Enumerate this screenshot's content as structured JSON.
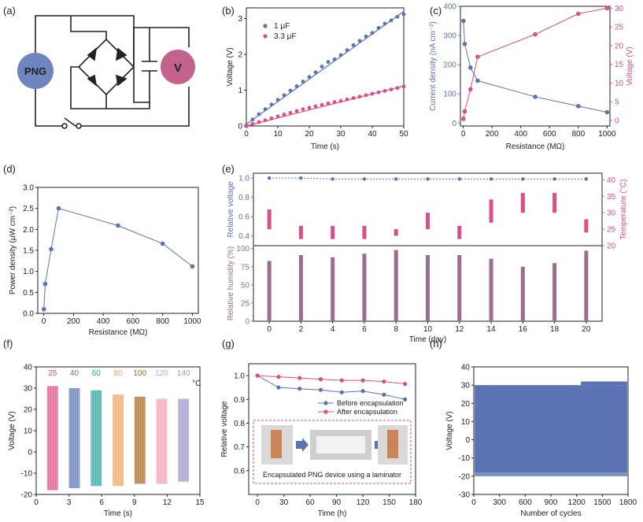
{
  "colors": {
    "blue": "#5b73b5",
    "pink": "#d94f86",
    "purple": "#9a6e8e",
    "fill": "#5b73b5",
    "circuitPNG": "#6f85bf",
    "circuitV": "#c3628d",
    "inset_border": "#d94f86"
  },
  "panel_labels": {
    "a": "(a)",
    "b": "(b)",
    "c": "(c)",
    "d": "(d)",
    "e": "(e)",
    "f": "(f)",
    "g": "(g)",
    "h": "(h)"
  },
  "circuit": {
    "png_label": "PNG",
    "meter_label": "V"
  },
  "chart_data": [
    {
      "id": "b",
      "type": "scatter",
      "xlabel": "Time (s)",
      "ylabel": "Voltage (V)",
      "xlim": [
        0,
        50
      ],
      "ylim": [
        0,
        3.3
      ],
      "xticks": [
        0,
        10,
        20,
        30,
        40,
        50
      ],
      "yticks": [
        0,
        1,
        2,
        3
      ],
      "legend": "top-left",
      "series": [
        {
          "name": "1 μF",
          "color": "#5b73b5",
          "x": [
            0,
            2,
            4,
            6,
            8,
            10,
            12,
            14,
            16,
            18,
            20,
            22,
            24,
            26,
            28,
            30,
            32,
            34,
            36,
            38,
            40,
            42,
            44,
            46,
            48,
            50
          ],
          "y": [
            0.02,
            0.18,
            0.33,
            0.47,
            0.6,
            0.73,
            0.86,
            0.99,
            1.11,
            1.24,
            1.37,
            1.5,
            1.66,
            1.79,
            1.86,
            1.98,
            2.12,
            2.26,
            2.38,
            2.5,
            2.6,
            2.74,
            2.86,
            2.95,
            3.05,
            3.12
          ],
          "fit": [
            [
              0,
              0.05
            ],
            [
              50,
              3.2
            ]
          ]
        },
        {
          "name": "3.3 μF",
          "color": "#d94f86",
          "x": [
            0,
            2,
            4,
            6,
            8,
            10,
            12,
            14,
            16,
            18,
            20,
            22,
            24,
            26,
            28,
            30,
            32,
            34,
            36,
            38,
            40,
            42,
            44,
            46,
            48,
            50
          ],
          "y": [
            0.0,
            0.06,
            0.11,
            0.16,
            0.21,
            0.27,
            0.32,
            0.37,
            0.42,
            0.47,
            0.51,
            0.55,
            0.59,
            0.63,
            0.67,
            0.7,
            0.74,
            0.78,
            0.82,
            0.86,
            0.9,
            0.94,
            0.98,
            1.02,
            1.06,
            1.1
          ],
          "fit": [
            [
              0,
              0.0
            ],
            [
              50,
              1.12
            ]
          ]
        }
      ]
    },
    {
      "id": "c",
      "type": "line",
      "xlabel": "Resistance (MΩ)",
      "ylabel": "Current density (nA cm⁻²)",
      "y2label": "Voltage (V)",
      "xlim": [
        -20,
        1020
      ],
      "ylim": [
        -10,
        400
      ],
      "y2lim": [
        -1.5,
        30.5
      ],
      "xticks": [
        0,
        200,
        400,
        600,
        800,
        1000
      ],
      "yticks": [
        0,
        100,
        200,
        300,
        400
      ],
      "y2ticks": [
        0,
        5,
        10,
        15,
        20,
        25,
        30
      ],
      "series": [
        {
          "name": "Current density",
          "axis": "left",
          "color": "#5b73b5",
          "x": [
            1,
            10,
            50,
            100,
            500,
            800,
            1000
          ],
          "y": [
            350,
            271,
            190,
            145,
            90,
            58,
            37
          ]
        },
        {
          "name": "Voltage",
          "axis": "right",
          "color": "#d94f86",
          "x": [
            1,
            10,
            50,
            100,
            500,
            800,
            1000
          ],
          "y": [
            0.4,
            2.4,
            8.3,
            17,
            23,
            28.5,
            30
          ]
        }
      ]
    },
    {
      "id": "d",
      "type": "line",
      "xlabel": "Resistance (MΩ)",
      "ylabel": "Power density (μW cm⁻²)",
      "xlim": [
        -40,
        1040
      ],
      "ylim": [
        0,
        3.0
      ],
      "xticks": [
        0,
        200,
        400,
        600,
        800,
        1000
      ],
      "yticks": [
        0,
        0.5,
        1.0,
        1.5,
        2.0,
        2.5,
        3.0
      ],
      "ytick_labels": [
        "0.0",
        "0.5",
        "1.0",
        "1.5",
        "2.0",
        "2.5",
        "3.0"
      ],
      "series": [
        {
          "name": "Power density",
          "color": "#5b73b5",
          "x": [
            1,
            10,
            50,
            100,
            500,
            800,
            1000
          ],
          "y": [
            0.1,
            0.7,
            1.53,
            2.5,
            2.09,
            1.66,
            1.12
          ]
        }
      ]
    },
    {
      "id": "e",
      "type": "bar",
      "xlabel": "Time (day)",
      "top": {
        "ylabel": "Relative voltage",
        "y2label": "Temperature (°C)",
        "ylim": [
          0.3,
          1.05
        ],
        "yticks": [
          0.4,
          0.6,
          0.8,
          1.0
        ],
        "ytick_labels": [
          "0.4",
          "0.6",
          "0.8",
          "1.0"
        ],
        "y2lim": [
          20,
          42
        ],
        "y2ticks": [
          20,
          25,
          30,
          35,
          40
        ],
        "voltage_x": [
          0,
          2,
          4,
          6,
          8,
          10,
          12,
          14,
          16,
          18,
          20
        ],
        "voltage": [
          1.0,
          1.0,
          0.99,
          0.99,
          0.99,
          0.99,
          0.99,
          0.99,
          0.99,
          0.99,
          0.99
        ],
        "temp_low": [
          25,
          22,
          22,
          22,
          23,
          25,
          22,
          27,
          30,
          30,
          24
        ],
        "temp_high": [
          31,
          26,
          26,
          26,
          25,
          30,
          26,
          34,
          36,
          36,
          28
        ]
      },
      "bottom": {
        "ylabel": "Relative humidity (%)",
        "ylim": [
          0,
          104
        ],
        "yticks": [
          0,
          25,
          50,
          75,
          100
        ],
        "x": [
          0,
          2,
          4,
          6,
          8,
          10,
          12,
          14,
          16,
          18,
          20
        ],
        "values": [
          83,
          91,
          88,
          93,
          98,
          91,
          91,
          86,
          75,
          80,
          97
        ]
      },
      "xticks": [
        0,
        2,
        4,
        6,
        8,
        10,
        12,
        14,
        16,
        18,
        20
      ]
    },
    {
      "id": "f",
      "type": "area",
      "xlabel": "Time (s)",
      "ylabel": "Voltage (V)",
      "xlim": [
        0,
        15
      ],
      "ylim": [
        -20,
        40
      ],
      "xticks": [
        0,
        3,
        6,
        9,
        12,
        15
      ],
      "yticks": [
        -20,
        -10,
        0,
        10,
        20,
        30,
        40
      ],
      "groups": [
        {
          "label": "25",
          "color": "#d94f86",
          "x0": 1.0,
          "x1": 2.0,
          "top": 31,
          "bottom": -18
        },
        {
          "label": "40",
          "color": "#5b73b5",
          "x0": 3.0,
          "x1": 4.0,
          "top": 30,
          "bottom": -17
        },
        {
          "label": "60",
          "color": "#2aa39a",
          "x0": 5.0,
          "x1": 6.0,
          "top": 29,
          "bottom": -16
        },
        {
          "label": "80",
          "color": "#f0a35e",
          "x0": 7.0,
          "x1": 8.0,
          "top": 27,
          "bottom": -16
        },
        {
          "label": "100",
          "color": "#a8671e",
          "x0": 9.0,
          "x1": 10.0,
          "top": 26,
          "bottom": -15
        },
        {
          "label": "120",
          "color": "#f2a0b4",
          "x0": 11.0,
          "x1": 12.0,
          "top": 25,
          "bottom": -15
        },
        {
          "label": "140",
          "color": "#9b95cf",
          "x0": 13.0,
          "x1": 14.0,
          "top": 25,
          "bottom": -14
        }
      ],
      "unit_label": "°C"
    },
    {
      "id": "g",
      "type": "line",
      "xlabel": "Time (h)",
      "ylabel": "Relative voltage",
      "xlim": [
        -10,
        180
      ],
      "ylim": [
        0.5,
        1.05
      ],
      "xticks": [
        0,
        30,
        60,
        90,
        120,
        150,
        180
      ],
      "yticks": [
        0.6,
        0.7,
        0.8,
        0.9,
        1.0
      ],
      "ytick_labels": [
        "0.6",
        "0.7",
        "0.8",
        "0.9",
        "1.0"
      ],
      "series": [
        {
          "name": "Before encapsulation",
          "color": "#5b73b5",
          "x": [
            0,
            24,
            48,
            72,
            96,
            120,
            144,
            168
          ],
          "y": [
            1.0,
            0.95,
            0.945,
            0.94,
            0.93,
            0.935,
            0.92,
            0.9
          ]
        },
        {
          "name": "After encapsulation",
          "color": "#d94f86",
          "x": [
            0,
            24,
            48,
            72,
            96,
            120,
            144,
            168
          ],
          "y": [
            1.0,
            0.995,
            0.99,
            0.985,
            0.98,
            0.98,
            0.975,
            0.965
          ]
        }
      ],
      "inset_caption": "Encapsulated PNG device using a laminator"
    },
    {
      "id": "h",
      "type": "area",
      "xlabel": "Number of cycles",
      "ylabel": "Voltage (V)",
      "xlim": [
        0,
        1800
      ],
      "ylim": [
        -30,
        40
      ],
      "xticks": [
        0,
        300,
        600,
        900,
        1200,
        1500,
        1800
      ],
      "yticks": [
        -30,
        -20,
        -10,
        0,
        10,
        20,
        30,
        40
      ],
      "band": {
        "top": 30,
        "top_peak": 32,
        "bottom": -18,
        "bottom_peak": -20
      }
    }
  ]
}
